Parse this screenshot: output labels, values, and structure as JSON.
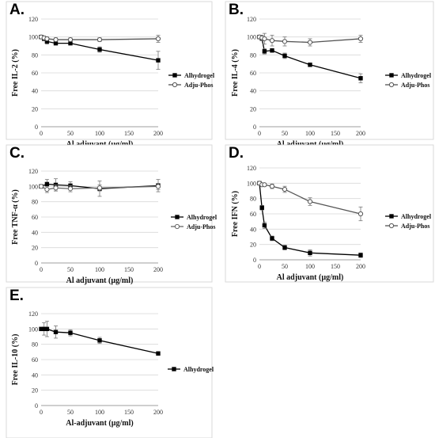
{
  "chart_data": [
    {
      "panel": "A.",
      "type": "line",
      "x": [
        0,
        5,
        10,
        25,
        50,
        100,
        200
      ],
      "xticks": [
        0,
        50,
        100,
        150,
        200
      ],
      "yticks": [
        0,
        20,
        40,
        60,
        80,
        100,
        120
      ],
      "xlim": [
        0,
        200
      ],
      "ylim": [
        0,
        120
      ],
      "xlabel": "Al adjuvant (µg/ml)",
      "ylabel": "Free IL-2 (%)",
      "grid": true,
      "legend_position": "right",
      "series": [
        {
          "name": "Alhydrogel",
          "marker": "square-filled",
          "color": "#000000",
          "values": [
            100,
            98,
            95,
            93,
            93,
            86,
            74
          ],
          "errors": [
            0,
            2,
            3,
            2,
            2,
            3,
            10
          ]
        },
        {
          "name": "Adju-Phos",
          "marker": "circle-open",
          "color": "#555555",
          "values": [
            100,
            99,
            98,
            97,
            97,
            97,
            98
          ],
          "errors": [
            0,
            2,
            2,
            2,
            2,
            2,
            4
          ]
        }
      ]
    },
    {
      "panel": "B.",
      "type": "line",
      "x": [
        0,
        5,
        10,
        25,
        50,
        100,
        200
      ],
      "xticks": [
        0,
        50,
        100,
        150,
        200
      ],
      "yticks": [
        0,
        20,
        40,
        60,
        80,
        100,
        120
      ],
      "xlim": [
        0,
        200
      ],
      "ylim": [
        0,
        120
      ],
      "xlabel": "Al adjuvant (µg/ml)",
      "ylabel": "Free IL-4 (%)",
      "grid": true,
      "legend_position": "right",
      "series": [
        {
          "name": "Alhydrogel",
          "marker": "square-filled",
          "color": "#000000",
          "values": [
            100,
            98,
            84,
            85,
            79,
            69,
            54
          ],
          "errors": [
            0,
            2,
            3,
            2,
            3,
            2,
            5
          ]
        },
        {
          "name": "Adju-Phos",
          "marker": "circle-open",
          "color": "#555555",
          "values": [
            100,
            99,
            98,
            96,
            95,
            94,
            98
          ],
          "errors": [
            0,
            3,
            6,
            6,
            5,
            4,
            4
          ]
        }
      ]
    },
    {
      "panel": "C.",
      "type": "line",
      "x": [
        0,
        10,
        25,
        50,
        100,
        200
      ],
      "xticks": [
        0,
        50,
        100,
        150,
        200
      ],
      "yticks": [
        0,
        20,
        40,
        60,
        80,
        100,
        120
      ],
      "xlim": [
        0,
        200
      ],
      "ylim": [
        0,
        120
      ],
      "xlabel": "Al adjuvant (µg/ml)",
      "ylabel": "Free TNF-α (%)",
      "grid": true,
      "legend_position": "right",
      "series": [
        {
          "name": "Alhydrogel",
          "marker": "square-filled",
          "color": "#000000",
          "values": [
            100,
            103,
            102,
            101,
            97,
            101
          ],
          "errors": [
            0,
            6,
            8,
            5,
            10,
            8
          ]
        },
        {
          "name": "Adju-Phos",
          "marker": "circle-open",
          "color": "#666666",
          "values": [
            100,
            96,
            98,
            97,
            98,
            100
          ],
          "errors": [
            0,
            4,
            4,
            4,
            4,
            4
          ]
        }
      ]
    },
    {
      "panel": "D.",
      "type": "line",
      "x": [
        0,
        5,
        10,
        25,
        50,
        100,
        200
      ],
      "xticks": [
        0,
        50,
        100,
        150,
        200
      ],
      "yticks": [
        0,
        20,
        40,
        60,
        80,
        100,
        120
      ],
      "xlim": [
        0,
        200
      ],
      "ylim": [
        0,
        120
      ],
      "xlabel": "Al adjuvant (µg/ml)",
      "ylabel": "Free IFN (%)",
      "grid": true,
      "legend_position": "right",
      "series": [
        {
          "name": "Alhydrogel",
          "marker": "square-filled",
          "color": "#000000",
          "values": [
            100,
            68,
            45,
            28,
            16,
            9,
            6
          ],
          "errors": [
            0,
            3,
            4,
            3,
            3,
            4,
            3
          ]
        },
        {
          "name": "Adju-Phos",
          "marker": "circle-open",
          "color": "#555555",
          "values": [
            100,
            98,
            98,
            96,
            92,
            76,
            60
          ],
          "errors": [
            0,
            2,
            2,
            3,
            4,
            5,
            9
          ]
        }
      ]
    },
    {
      "panel": "E.",
      "type": "line",
      "x": [
        0,
        5,
        10,
        25,
        50,
        100,
        200
      ],
      "xticks": [
        0,
        50,
        100,
        150,
        200
      ],
      "yticks": [
        0,
        20,
        40,
        60,
        80,
        100,
        120
      ],
      "xlim": [
        0,
        200
      ],
      "ylim": [
        0,
        120
      ],
      "xlabel": "Al-adjuvant (µg/ml)",
      "ylabel": "Free IL-10 (%)",
      "grid": true,
      "legend_position": "right",
      "series": [
        {
          "name": "Alhydrogel",
          "marker": "square-filled",
          "color": "#000000",
          "values": [
            100,
            100,
            100,
            96,
            95,
            85,
            68
          ],
          "errors": [
            0,
            8,
            10,
            8,
            4,
            4,
            2
          ]
        }
      ]
    }
  ]
}
